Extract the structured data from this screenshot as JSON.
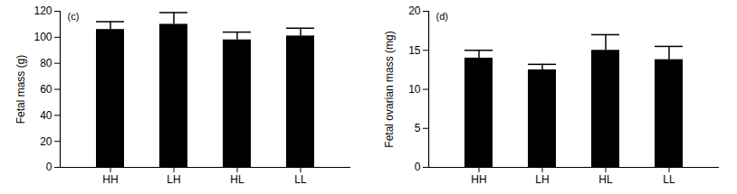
{
  "chart_data": [
    {
      "type": "bar",
      "title": "(c)",
      "y_label": "Fetal mass (g)",
      "categories": [
        "HH",
        "LH",
        "HL",
        "LL"
      ],
      "values": [
        106,
        110,
        98,
        101
      ],
      "errors": [
        6,
        9,
        6,
        6
      ],
      "color": "#000000",
      "ylim": [
        0,
        120
      ],
      "yticks": [
        0,
        20,
        40,
        60,
        80,
        100,
        120
      ],
      "grid": false
    },
    {
      "type": "bar",
      "title": "(d)",
      "y_label": "Fetal ovarian mass (mg)",
      "categories": [
        "HH",
        "LH",
        "HL",
        "LL"
      ],
      "values": [
        14,
        12.5,
        15,
        13.8
      ],
      "errors": [
        1,
        0.7,
        2,
        1.7
      ],
      "color": "#000000",
      "ylim": [
        0,
        20
      ],
      "yticks": [
        0,
        5,
        10,
        15,
        20
      ],
      "grid": false
    }
  ]
}
